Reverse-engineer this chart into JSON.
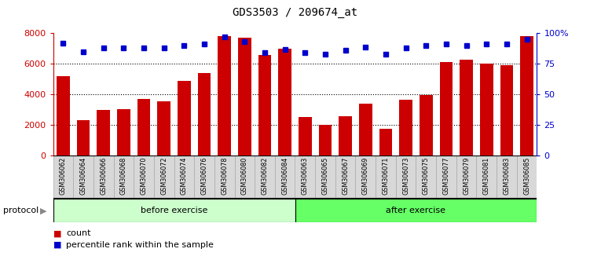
{
  "title": "GDS3503 / 209674_at",
  "categories": [
    "GSM306062",
    "GSM306064",
    "GSM306066",
    "GSM306068",
    "GSM306070",
    "GSM306072",
    "GSM306074",
    "GSM306076",
    "GSM306078",
    "GSM306080",
    "GSM306082",
    "GSM306084",
    "GSM306063",
    "GSM306065",
    "GSM306067",
    "GSM306069",
    "GSM306071",
    "GSM306073",
    "GSM306075",
    "GSM306077",
    "GSM306079",
    "GSM306081",
    "GSM306083",
    "GSM306085"
  ],
  "counts": [
    5200,
    2300,
    3000,
    3050,
    3700,
    3550,
    4900,
    5400,
    7800,
    7700,
    6600,
    7000,
    2550,
    2000,
    2600,
    3400,
    1750,
    3650,
    3950,
    6100,
    6300,
    6000,
    5900,
    7800
  ],
  "percentile_ranks": [
    92,
    85,
    88,
    88,
    88,
    88,
    90,
    91,
    97,
    93,
    84,
    87,
    84,
    83,
    86,
    89,
    83,
    88,
    90,
    91,
    90,
    91,
    91,
    95
  ],
  "bar_color": "#cc0000",
  "dot_color": "#0000cc",
  "before_count": 12,
  "after_count": 12,
  "before_label": "before exercise",
  "after_label": "after exercise",
  "before_color": "#ccffcc",
  "after_color": "#66ff66",
  "protocol_label": "protocol",
  "ylim_left": [
    0,
    8000
  ],
  "ylim_right": [
    0,
    100
  ],
  "yticks_left": [
    0,
    2000,
    4000,
    6000,
    8000
  ],
  "yticks_right": [
    0,
    25,
    50,
    75,
    100
  ],
  "ytick_labels_right": [
    "0",
    "25",
    "50",
    "75",
    "100%"
  ],
  "legend_count_label": "count",
  "legend_percentile_label": "percentile rank within the sample",
  "background_color": "#ffffff"
}
